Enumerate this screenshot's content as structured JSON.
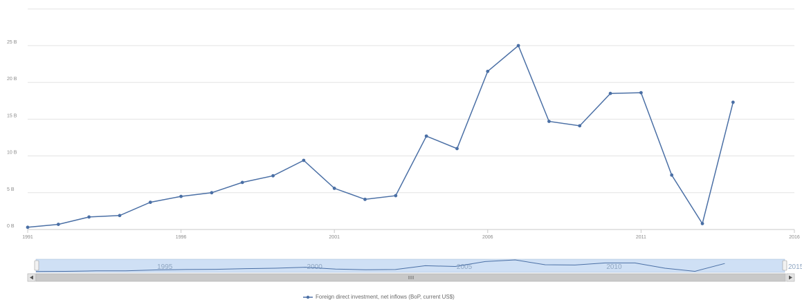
{
  "chart_data": {
    "type": "line",
    "title": "",
    "xlabel": "",
    "ylabel": "",
    "x": [
      1991,
      1992,
      1993,
      1994,
      1995,
      1996,
      1997,
      1998,
      1999,
      2000,
      2001,
      2002,
      2003,
      2004,
      2005,
      2006,
      2007,
      2008,
      2009,
      2010,
      2011,
      2012,
      2013,
      2014
    ],
    "series": [
      {
        "name": "Foreign direct investment, net inflows (BoP, current US$)",
        "color": "#4a6fa5",
        "values": [
          0.3,
          0.7,
          1.7,
          1.9,
          3.7,
          4.5,
          5.0,
          6.4,
          7.3,
          9.4,
          5.6,
          4.1,
          4.6,
          12.7,
          11.0,
          21.5,
          25.0,
          14.7,
          14.1,
          18.5,
          18.6,
          7.4,
          0.8,
          17.3
        ]
      }
    ],
    "ylim": [
      0,
      25
    ],
    "yticks": [
      "0 B",
      "5 B",
      "10 B",
      "15 B",
      "20 B",
      "25 B"
    ],
    "xticks": [
      "1991",
      "1996",
      "2001",
      "2006",
      "2011",
      "2016"
    ],
    "navigator": {
      "labels": [
        "1995",
        "2000",
        "2005",
        "2010"
      ],
      "edge_label": "2015",
      "scroll_left_icon": "arrow-left-icon",
      "scroll_right_icon": "arrow-right-icon",
      "thumb_icon": "grip-icon"
    },
    "grid": true,
    "legend_position": "bottom-center"
  }
}
